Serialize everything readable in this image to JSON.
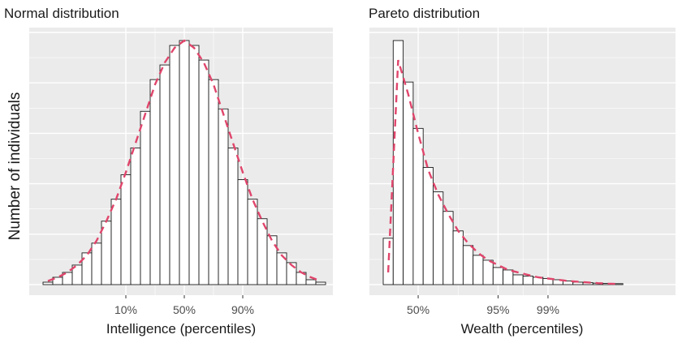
{
  "shared_ylabel": "Number of individuals",
  "colors": {
    "panel_bg": "#ebebeb",
    "grid": "#ffffff",
    "bar_fill": "#ffffff",
    "bar_stroke": "#1a1a1a",
    "curve": "#e0456b",
    "tick_label": "#4d4d4d"
  },
  "chart_data": [
    {
      "type": "bar",
      "title": "Normal distribution",
      "xlabel": "Intelligence (percentiles)",
      "ylabel": "Number of individuals",
      "grid": true,
      "overlay": "density curve (dashed)",
      "x_ticks": [
        {
          "label": "10%",
          "bin": 8.5
        },
        {
          "label": "50%",
          "bin": 14.5
        },
        {
          "label": "90%",
          "bin": 20.5
        }
      ],
      "values": [
        1,
        3,
        5,
        8,
        13,
        17,
        26,
        35,
        45,
        56,
        71,
        84,
        90,
        98,
        100,
        98,
        92,
        84,
        72,
        56,
        43,
        35,
        27,
        20,
        13,
        9,
        5,
        2,
        1
      ],
      "curve": [
        1.5,
        3,
        5,
        8,
        12,
        18,
        26,
        35,
        46,
        58,
        70,
        82,
        91,
        97,
        100,
        97,
        91,
        82,
        70,
        58,
        46,
        35,
        26,
        18,
        12,
        8,
        5,
        3,
        1.5
      ]
    },
    {
      "type": "bar",
      "title": "Pareto distribution",
      "xlabel": "Wealth (percentiles)",
      "ylabel": "Number of individuals",
      "grid": true,
      "overlay": "density curve (dashed)",
      "x_ticks": [
        {
          "label": "50%",
          "bin": 3.5
        },
        {
          "label": "95%",
          "bin": 11.5
        },
        {
          "label": "99%",
          "bin": 16.5
        }
      ],
      "values": [
        19,
        100,
        83,
        64,
        48,
        38,
        30,
        22,
        16,
        12,
        10,
        7,
        6,
        4,
        3.5,
        3,
        2.5,
        2,
        1.5,
        1,
        0.8,
        0.6,
        0.5,
        0.4
      ],
      "curve": [
        5,
        92,
        78,
        62,
        47,
        37,
        29,
        22,
        17,
        13,
        10,
        8,
        6,
        5,
        4,
        3,
        2.5,
        2,
        1.5,
        1.2,
        0.9,
        0.6,
        0.4,
        0.3
      ]
    }
  ]
}
